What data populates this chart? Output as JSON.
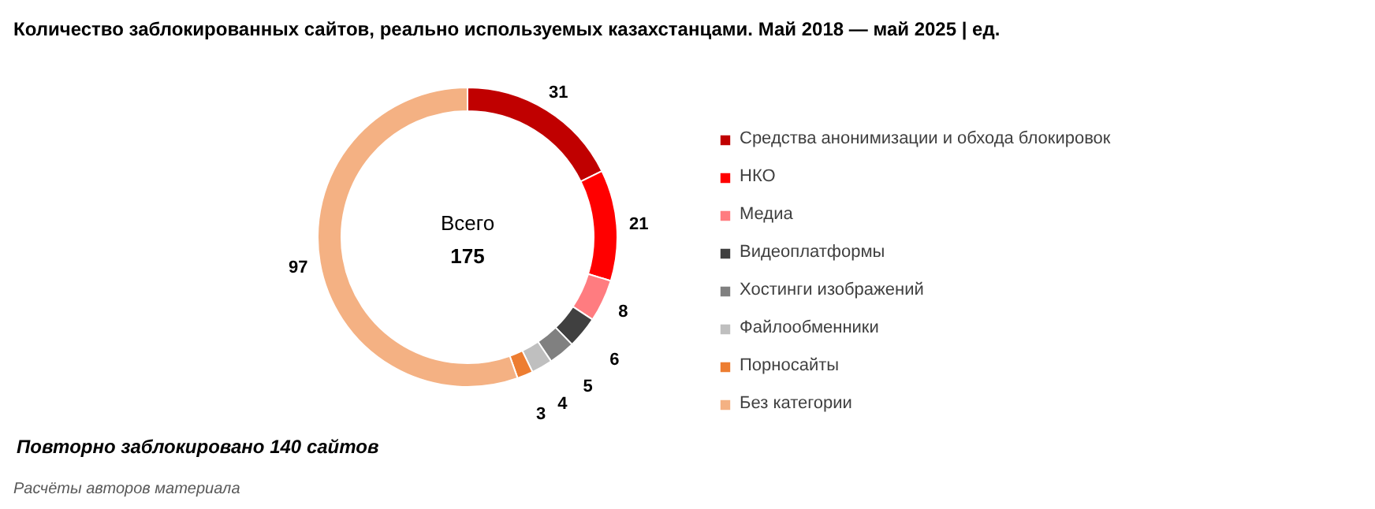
{
  "chart_data": {
    "type": "donut",
    "title": "Количество заблокированных сайтов, реально используемых казахстанцами. Май 2018 — май 2025 | ед.",
    "categories": [
      "Средства анонимизации и обхода блокировок",
      "НКО",
      "Медиа",
      "Видеоплатформы",
      "Хостинги изображений",
      "Файлообменники",
      "Порносайты",
      "Без категории"
    ],
    "values": [
      31,
      21,
      8,
      6,
      5,
      4,
      3,
      97
    ],
    "colors": [
      "#c00000",
      "#ff0000",
      "#ff7c80",
      "#404040",
      "#808080",
      "#bfbfbf",
      "#ed7d31",
      "#f4b183"
    ],
    "data_labels": true,
    "legend": "right",
    "annotations": [
      "Всего",
      "175",
      "Повторно заблокировано 140 сайтов",
      "Расчёты авторов материала"
    ]
  }
}
